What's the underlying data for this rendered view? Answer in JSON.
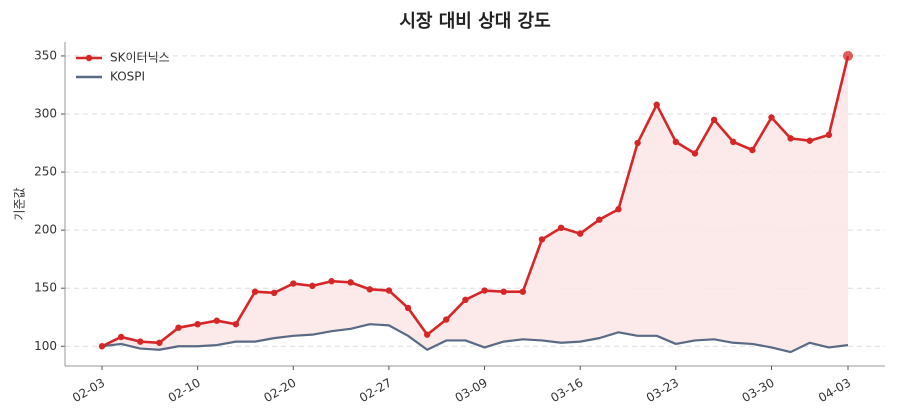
{
  "chart_data": {
    "type": "line",
    "title": "시장 대비 상대 강도",
    "y_label": "기준값",
    "categories": [
      "02-03",
      null,
      null,
      null,
      null,
      "02-10",
      null,
      null,
      null,
      null,
      "02-20",
      null,
      null,
      null,
      null,
      "02-27",
      null,
      null,
      null,
      null,
      "03-09",
      null,
      null,
      null,
      null,
      "03-16",
      null,
      null,
      null,
      null,
      "03-23",
      null,
      null,
      null,
      null,
      "03-30",
      null,
      null,
      null,
      "04-03"
    ],
    "series": [
      {
        "name": "SK이터닉스",
        "color": "#d62728",
        "values": [
          100,
          108,
          104,
          103,
          116,
          119,
          122,
          119,
          147,
          146,
          154,
          152,
          156,
          155,
          149,
          148,
          133,
          110,
          123,
          140,
          148,
          147,
          147,
          192,
          202,
          197,
          209,
          218,
          275,
          308,
          276,
          266,
          295,
          276,
          269,
          297,
          279,
          277,
          282,
          350
        ]
      },
      {
        "name": "KOSPI",
        "color": "#5a6a85",
        "values": [
          100,
          102,
          98,
          97,
          100,
          100,
          101,
          104,
          104,
          107,
          109,
          110,
          113,
          115,
          119,
          118,
          109,
          97,
          105,
          105,
          99,
          104,
          106,
          105,
          103,
          104,
          107,
          112,
          109,
          109,
          102,
          105,
          106,
          103,
          102,
          99,
          95,
          103,
          99,
          101
        ]
      }
    ],
    "fill_color": "#fbe6e6",
    "ylim": [
      83,
      362
    ],
    "yticks": [
      100,
      150,
      200,
      250,
      300,
      350
    ],
    "grid": true,
    "legend": "upper left"
  }
}
